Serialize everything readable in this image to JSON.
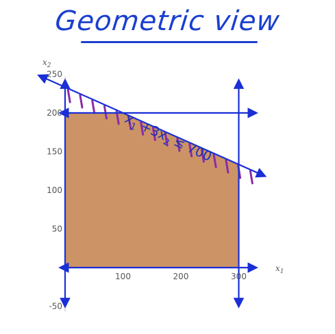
{
  "title": "Geometric view",
  "chart_data": {
    "type": "area",
    "xlabel": "x1",
    "ylabel": "x2",
    "xlim": [
      -10,
      330
    ],
    "ylim": [
      -55,
      255
    ],
    "x_ticks": [
      100,
      200,
      300
    ],
    "x_tick_labels": [
      "100",
      "200",
      "300"
    ],
    "y_ticks": [
      -50,
      50,
      100,
      150,
      200,
      250
    ],
    "y_tick_labels": [
      "-50",
      "50",
      "100",
      "150",
      "200",
      "250"
    ],
    "feasible_region": [
      [
        0,
        0
      ],
      [
        300,
        0
      ],
      [
        300,
        133.3
      ],
      [
        100,
        200
      ],
      [
        0,
        200
      ]
    ],
    "constraint_lines": [
      {
        "name": "x1 + 3x2 ≤ 700",
        "a": 1,
        "b": 3,
        "c": 700
      },
      {
        "name": "x2 ≤ 200",
        "a": 0,
        "b": 1,
        "c": 200
      },
      {
        "name": "x1 ≤ 300",
        "a": 1,
        "b": 0,
        "c": 300
      },
      {
        "name": "x1 ≥ 0",
        "a": 1,
        "b": 0,
        "c": 0
      },
      {
        "name": "x2 ≥ 0",
        "a": 0,
        "b": 1,
        "c": 0
      }
    ],
    "annotation": {
      "parts": [
        "x",
        "1",
        " +3x",
        "2",
        " ≤ 700"
      ],
      "x": 175,
      "y": 163
    },
    "colors": {
      "region": "#c98e5e",
      "lines": "#1a2fd6",
      "hatch": "#8a2ca8"
    }
  }
}
